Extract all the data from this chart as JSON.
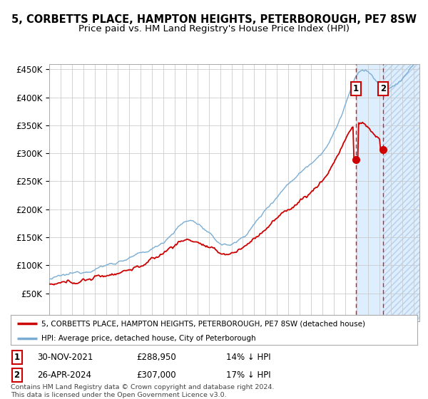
{
  "title": "5, CORBETTS PLACE, HAMPTON HEIGHTS, PETERBOROUGH, PE7 8SW",
  "subtitle": "Price paid vs. HM Land Registry's House Price Index (HPI)",
  "title_fontsize": 10.5,
  "subtitle_fontsize": 9.5,
  "ylim": [
    0,
    460000
  ],
  "yticks": [
    0,
    50000,
    100000,
    150000,
    200000,
    250000,
    300000,
    350000,
    400000,
    450000
  ],
  "hpi_color": "#7aadd4",
  "price_color": "#cc0000",
  "marker_color": "#cc0000",
  "marker_size": 7,
  "point1_year": 2021.917,
  "point1_price": 288950,
  "point1_date": "30-NOV-2021",
  "point1_label": "14% ↓ HPI",
  "point2_year": 2024.333,
  "point2_price": 307000,
  "point2_date": "26-APR-2024",
  "point2_label": "17% ↓ HPI",
  "legend1": "5, CORBETTS PLACE, HAMPTON HEIGHTS, PETERBOROUGH, PE7 8SW (detached house)",
  "legend2": "HPI: Average price, detached house, City of Peterborough",
  "footnote": "Contains HM Land Registry data © Crown copyright and database right 2024.\nThis data is licensed under the Open Government Licence v3.0.",
  "bg_color": "#ffffff",
  "grid_color": "#cccccc",
  "shaded_color": "#ddeeff",
  "x_start_year": 1995,
  "x_end_year": 2027
}
